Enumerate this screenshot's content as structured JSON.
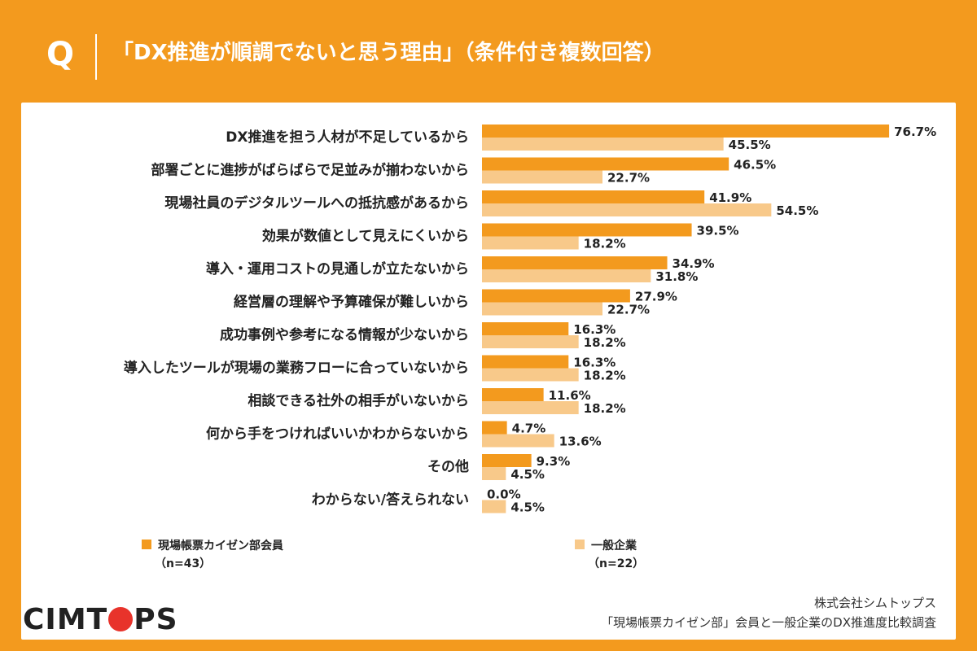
{
  "header": {
    "q_label": "Q",
    "title": "「DX推進が順調でないと思う理由」（条件付き複数回答）"
  },
  "chart_data": {
    "type": "bar",
    "orientation": "horizontal",
    "categories": [
      "DX推進を担う人材が不足しているから",
      "部署ごとに進捗がばらばらで足並みが揃わないから",
      "現場社員のデジタルツールへの抵抗感があるから",
      "効果が数値として見えにくいから",
      "導入・運用コストの見通しが立たないから",
      "経営層の理解や予算確保が難しいから",
      "成功事例や参考になる情報が少ないから",
      "導入したツールが現場の業務フローに合っていないから",
      "相談できる社外の相手がいないから",
      "何から手をつければいいかわからないから",
      "その他",
      "わからない/答えられない"
    ],
    "series": [
      {
        "name": "現場帳票カイゼン部会員",
        "n_label": "（n=43）",
        "color": "#F39A1E",
        "values": [
          76.7,
          46.5,
          41.9,
          39.5,
          34.9,
          27.9,
          16.3,
          16.3,
          11.6,
          4.7,
          9.3,
          0.0
        ],
        "labels": [
          "76.7%",
          "46.5%",
          "41.9%",
          "39.5%",
          "34.9%",
          "27.9%",
          "16.3%",
          "16.3%",
          "11.6%",
          "4.7%",
          "9.3%",
          "0.0%"
        ]
      },
      {
        "name": "一般企業",
        "n_label": "（n=22）",
        "color": "#F8C98A",
        "values": [
          45.5,
          22.7,
          54.5,
          18.2,
          31.8,
          22.7,
          18.2,
          18.2,
          18.2,
          13.6,
          4.5,
          4.5
        ],
        "labels": [
          "45.5%",
          "22.7%",
          "54.5%",
          "18.2%",
          "31.8%",
          "22.7%",
          "18.2%",
          "18.2%",
          "18.2%",
          "13.6%",
          "4.5%",
          "4.5%"
        ]
      }
    ],
    "xlim": [
      0,
      100
    ],
    "grid": false,
    "legend": "bottom"
  },
  "brand": {
    "logo_before": "CIMT",
    "logo_after": "PS",
    "accent": "#E8332B"
  },
  "source": {
    "company": "株式会社シムトップス",
    "survey": "「現場帳票カイゼン部」会員と一般企業のDX推進度比較調査"
  },
  "colors": {
    "frame": "#F39A1E",
    "series1": "#F39A1E",
    "series2": "#F8C98A"
  }
}
